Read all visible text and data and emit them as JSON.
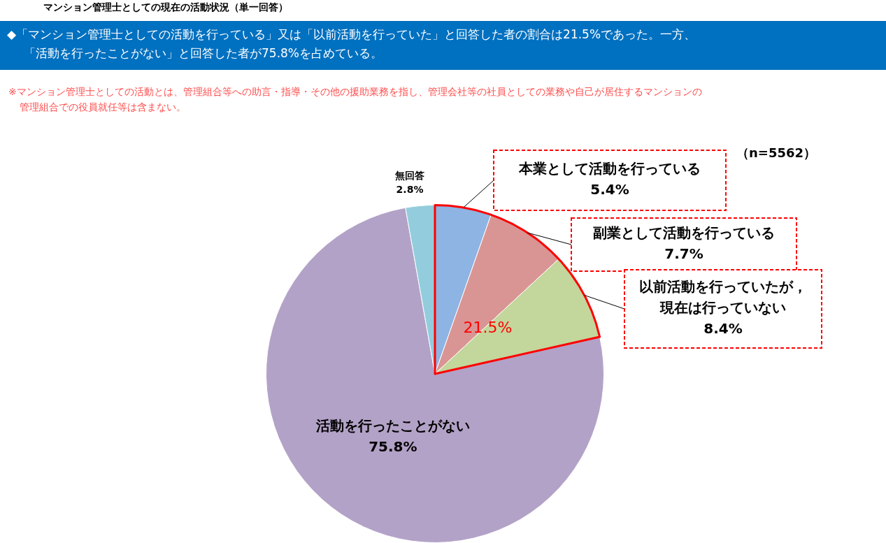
{
  "chart_data": {
    "type": "pie",
    "title": "マンション管理士としての現在の活動状況（単一回答）",
    "subtitle": "◆「マンション管理士としての活動を行っている」又は「以前活動を行っていた」と回答した者の割合は21.5%であった。一方、「活動を行ったことがない」と回答した者が75.8%を占めている。",
    "categories": [
      "本業として活動を行っている",
      "副業として活動を行っている",
      "以前活動を行っていたが，現在は行っていない",
      "活動を行ったことがない",
      "無回答"
    ],
    "values": [
      5.4,
      7.7,
      8.4,
      75.8,
      2.8
    ],
    "value_labels": [
      "5.4%",
      "7.7%",
      "8.4%",
      "75.8%",
      "2.8%"
    ],
    "colors": [
      "#8eb4e3",
      "#d99594",
      "#c3d69b",
      "#b3a2c7",
      "#93cddd"
    ],
    "annotations": [
      "※マンション管理士としての活動とは、管理組合等への助言・指導・その他の援助業務を指し、管理会社等の社員としての業務や自己が居住するマンションの管理組合での役員就任等は含まない。",
      "（n=5562）",
      "21.5%"
    ],
    "legend": false
  }
}
